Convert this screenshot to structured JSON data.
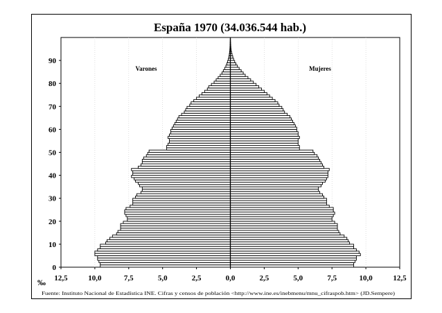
{
  "chart_data": {
    "type": "bar",
    "title": "España 1970 (34.036.544 hab.)",
    "unit_label": "‰",
    "xlim": [
      -12.5,
      12.5
    ],
    "ylim": [
      0,
      100
    ],
    "x_ticks": [
      "12,5",
      "10,0",
      "7,5",
      "5,0",
      "2,5",
      "0,0",
      "2,5",
      "5,0",
      "7,5",
      "10,0",
      "12,5"
    ],
    "y_ticks": [
      "0",
      "10",
      "20",
      "30",
      "40",
      "50",
      "60",
      "70",
      "80",
      "90"
    ],
    "series": [
      {
        "name": "Varones",
        "side": "left"
      },
      {
        "name": "Mujeres",
        "side": "right"
      }
    ],
    "source": "Fuente: Instituto Nacional de Estadística INE. Cifras y censos de población <http://www.ine.es/inebmenu/mnu_cifraspob.htm> (JD.Sempere)",
    "ages": [
      0,
      1,
      2,
      3,
      4,
      5,
      6,
      7,
      8,
      9,
      10,
      11,
      12,
      13,
      14,
      15,
      16,
      17,
      18,
      19,
      20,
      21,
      22,
      23,
      24,
      25,
      26,
      27,
      28,
      29,
      30,
      31,
      32,
      33,
      34,
      35,
      36,
      37,
      38,
      39,
      40,
      41,
      42,
      43,
      44,
      45,
      46,
      47,
      48,
      49,
      50,
      51,
      52,
      53,
      54,
      55,
      56,
      57,
      58,
      59,
      60,
      61,
      62,
      63,
      64,
      65,
      66,
      67,
      68,
      69,
      70,
      71,
      72,
      73,
      74,
      75,
      76,
      77,
      78,
      79,
      80,
      81,
      82,
      83,
      84,
      85,
      86,
      87,
      88,
      89,
      90,
      91,
      92,
      93,
      94,
      95,
      96,
      97,
      98,
      99
    ],
    "male": [
      9.6,
      9.6,
      9.7,
      9.8,
      9.8,
      10.0,
      10.0,
      9.8,
      9.6,
      9.6,
      9.2,
      9.1,
      8.9,
      8.7,
      8.4,
      8.3,
      8.1,
      8.1,
      8.1,
      7.9,
      7.6,
      7.6,
      7.7,
      7.8,
      7.8,
      7.7,
      7.4,
      7.2,
      7.2,
      7.2,
      7.0,
      6.9,
      6.6,
      6.5,
      6.5,
      6.7,
      6.8,
      7.0,
      7.1,
      7.3,
      7.2,
      7.2,
      7.3,
      6.8,
      6.6,
      6.5,
      6.5,
      6.4,
      6.2,
      6.1,
      6.0,
      4.7,
      4.7,
      4.6,
      4.5,
      4.5,
      4.6,
      4.5,
      4.4,
      4.4,
      4.3,
      4.2,
      4.1,
      4.0,
      3.9,
      3.8,
      3.6,
      3.4,
      3.3,
      3.2,
      3.0,
      2.9,
      2.7,
      2.5,
      2.3,
      2.1,
      1.9,
      1.7,
      1.6,
      1.4,
      1.2,
      1.05,
      0.9,
      0.75,
      0.62,
      0.52,
      0.42,
      0.33,
      0.26,
      0.2,
      0.15,
      0.11,
      0.08,
      0.06,
      0.04,
      0.03,
      0.02,
      0.015,
      0.01,
      0.005
    ],
    "female": [
      9.1,
      9.1,
      9.2,
      9.3,
      9.3,
      9.6,
      9.5,
      9.3,
      9.1,
      9.1,
      8.8,
      8.7,
      8.6,
      8.4,
      8.1,
      8.0,
      7.9,
      7.9,
      7.9,
      7.7,
      7.5,
      7.5,
      7.6,
      7.7,
      7.6,
      7.6,
      7.3,
      7.1,
      7.1,
      7.1,
      6.9,
      6.8,
      6.6,
      6.5,
      6.5,
      6.7,
      6.8,
      7.0,
      7.1,
      7.2,
      7.2,
      7.2,
      7.3,
      6.9,
      6.8,
      6.7,
      6.6,
      6.5,
      6.4,
      6.2,
      6.1,
      5.1,
      5.1,
      5.0,
      5.0,
      5.0,
      5.1,
      5.0,
      5.0,
      4.9,
      4.9,
      4.8,
      4.7,
      4.6,
      4.5,
      4.4,
      4.2,
      4.0,
      3.9,
      3.8,
      3.6,
      3.5,
      3.3,
      3.1,
      2.9,
      2.7,
      2.5,
      2.3,
      2.1,
      1.9,
      1.7,
      1.5,
      1.3,
      1.1,
      0.95,
      0.8,
      0.65,
      0.52,
      0.41,
      0.32,
      0.24,
      0.18,
      0.13,
      0.09,
      0.06,
      0.04,
      0.03,
      0.02,
      0.012,
      0.006
    ]
  }
}
